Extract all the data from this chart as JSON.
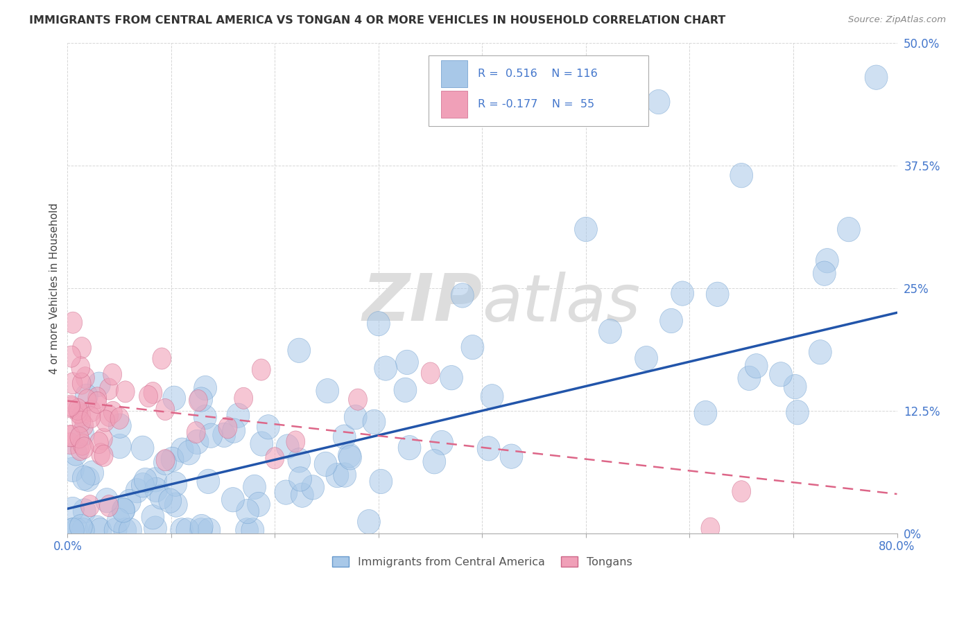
{
  "title": "IMMIGRANTS FROM CENTRAL AMERICA VS TONGAN 4 OR MORE VEHICLES IN HOUSEHOLD CORRELATION CHART",
  "source_text": "Source: ZipAtlas.com",
  "ylabel": "4 or more Vehicles in Household",
  "xmin": 0.0,
  "xmax": 0.8,
  "ymin": 0.0,
  "ymax": 0.5,
  "ytick_vals": [
    0.0,
    0.125,
    0.25,
    0.375,
    0.5
  ],
  "ytick_labels": [
    "0%",
    "12.5%",
    "25%",
    "37.5%",
    "50.0%"
  ],
  "xtick_vals": [
    0.0,
    0.1,
    0.2,
    0.3,
    0.4,
    0.5,
    0.6,
    0.7,
    0.8
  ],
  "xtick_labels": [
    "0.0%",
    "",
    "",
    "",
    "",
    "",
    "",
    "",
    "80.0%"
  ],
  "blue_color": "#a8c8e8",
  "blue_edge": "#6699cc",
  "pink_color": "#f0a0b8",
  "pink_edge": "#cc6688",
  "trend_blue": "#2255aa",
  "trend_pink": "#dd6688",
  "tick_color": "#4477cc",
  "title_color": "#333333",
  "grid_color": "#cccccc",
  "watermark_color": "#dddddd",
  "legend_edge": "#aaaaaa",
  "legend_text_color": "#4477cc",
  "source_color": "#888888",
  "blue_trend_start_y": 0.025,
  "blue_trend_end_y": 0.225,
  "pink_trend_start_y": 0.135,
  "pink_trend_end_y": 0.04
}
